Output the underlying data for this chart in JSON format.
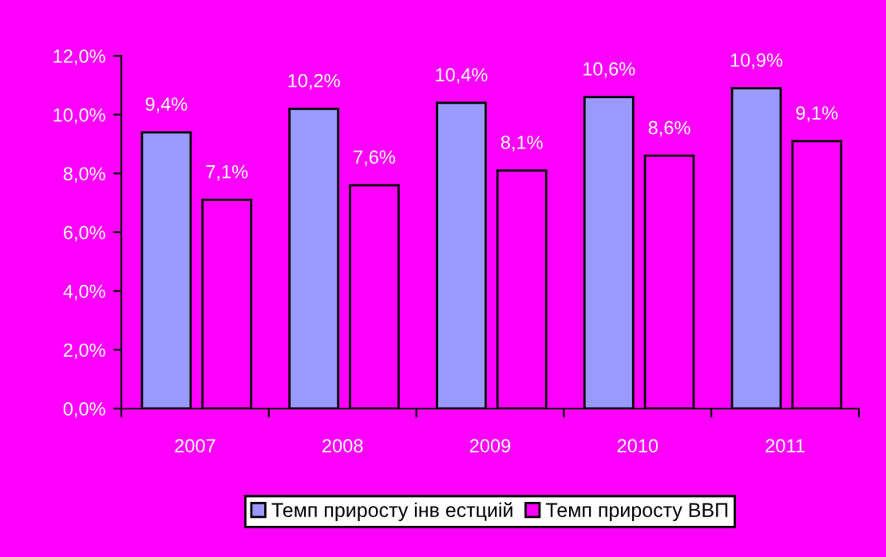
{
  "chart_data": {
    "type": "bar",
    "categories": [
      "2007",
      "2008",
      "2009",
      "2010",
      "2011"
    ],
    "series": [
      {
        "name": "Темп приросту інв естциій",
        "color": "#9999ff",
        "values": [
          9.4,
          10.2,
          10.4,
          10.6,
          10.9
        ],
        "value_labels": [
          "9,4%",
          "10,2%",
          "10,4%",
          "10,6%",
          "10,9%"
        ]
      },
      {
        "name": "Темп приросту ВВП",
        "color": "#ff00ff",
        "values": [
          7.1,
          7.6,
          8.1,
          8.6,
          9.1
        ],
        "value_labels": [
          "7,1%",
          "7,6%",
          "8,1%",
          "8,6%",
          "9,1%"
        ]
      }
    ],
    "ylim": [
      0,
      12
    ],
    "yticks": [
      {
        "value": 0,
        "label": "0,0%"
      },
      {
        "value": 2,
        "label": "2,0%"
      },
      {
        "value": 4,
        "label": "4,0%"
      },
      {
        "value": 6,
        "label": "6,0%"
      },
      {
        "value": 8,
        "label": "8,0%"
      },
      {
        "value": 10,
        "label": "10,0%"
      },
      {
        "value": 12,
        "label": "12,0%"
      }
    ],
    "grid": false,
    "legend": "bottom"
  }
}
